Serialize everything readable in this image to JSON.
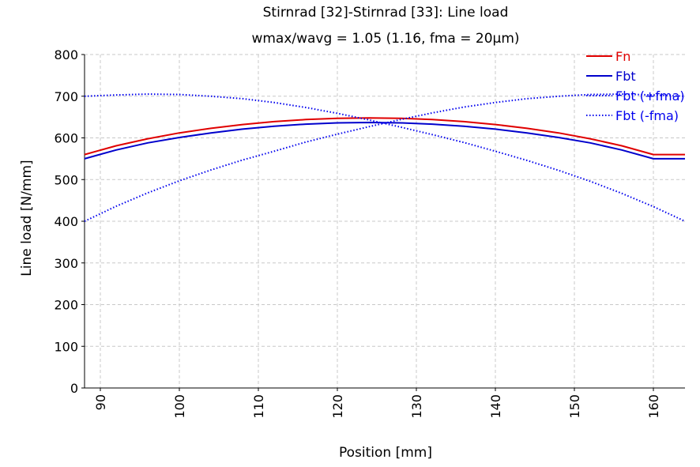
{
  "chart_data": {
    "type": "line",
    "title": "Stirnrad [32]-Stirnrad [33]: Line load",
    "subtitle": "wmax/wavg = 1.05 (1.16, fma = 20µm)",
    "xlabel": "Position [mm]",
    "ylabel": "Line load [N/mm]",
    "xlim": [
      88,
      164
    ],
    "ylim": [
      0,
      800
    ],
    "xticks": [
      90,
      100,
      110,
      120,
      130,
      140,
      150,
      160
    ],
    "yticks": [
      0,
      100,
      200,
      300,
      400,
      500,
      600,
      700,
      800
    ],
    "grid": true,
    "legend_position": "top-right",
    "x": [
      88,
      92,
      96,
      100,
      104,
      108,
      112,
      116,
      120,
      124,
      128,
      132,
      136,
      140,
      144,
      148,
      152,
      156,
      160,
      164
    ],
    "series": [
      {
        "name": "Fn",
        "color": "#e00000",
        "style": "solid",
        "values": [
          560,
          581,
          598,
          612,
          623,
          632,
          639,
          644,
          647,
          648,
          647,
          644,
          639,
          632,
          623,
          612,
          598,
          581,
          560,
          560
        ]
      },
      {
        "name": "Fbt",
        "color": "#0000cc",
        "style": "solid",
        "values": [
          550,
          571,
          588,
          601,
          612,
          621,
          628,
          633,
          636,
          637,
          636,
          633,
          628,
          621,
          612,
          601,
          588,
          571,
          550,
          550
        ]
      },
      {
        "name": "Fbt (+fma)",
        "color": "#0000ee",
        "style": "dotted",
        "values": [
          700,
          703,
          705,
          704,
          700,
          694,
          685,
          673,
          659,
          643,
          626,
          608,
          589,
          568,
          546,
          522,
          496,
          467,
          435,
          400
        ]
      },
      {
        "name": "Fbt (-fma)",
        "color": "#0000ee",
        "style": "dotted",
        "values": [
          400,
          436,
          468,
          497,
          523,
          547,
          568,
          590,
          609,
          627,
          644,
          660,
          674,
          685,
          694,
          700,
          704,
          705,
          703,
          700
        ]
      }
    ]
  }
}
